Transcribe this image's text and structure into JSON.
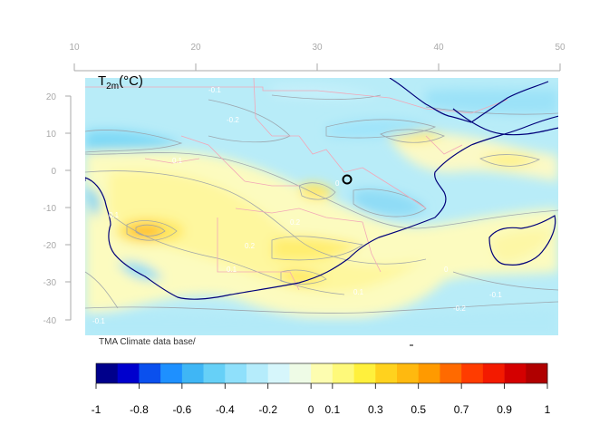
{
  "map": {
    "variable_main": "T",
    "variable_sub": "2m",
    "variable_unit": "(°C)",
    "credit": "TMA Climate data base/",
    "lon_ticks": [
      "10",
      "20",
      "30",
      "40",
      "50"
    ],
    "lat_ticks": [
      "20",
      "10",
      "0",
      "-10",
      "-20",
      "-30",
      "-40"
    ],
    "lon_range": [
      10,
      50
    ],
    "lat_range": [
      -40,
      20
    ],
    "marker": {
      "lon": 32.5,
      "lat": -2.5,
      "shape": "open-circle"
    },
    "contour_labels": [
      "-0.1",
      "0.1",
      "0.2",
      "-0.2",
      "0",
      "0.1",
      "-0.1",
      "0.2",
      "0",
      "0.1",
      "-0.2",
      "-0.1",
      "0.1"
    ]
  },
  "colorbar": {
    "colors": [
      "#00008b",
      "#0000cd",
      "#0a50ee",
      "#1e90ff",
      "#3fb6f5",
      "#66d0f7",
      "#8fe0fb",
      "#b5ecfb",
      "#d6f6fb",
      "#eefbe6",
      "#fdfdb0",
      "#fef97a",
      "#fff03c",
      "#ffd21e",
      "#ffb90f",
      "#ff9a00",
      "#ff6a00",
      "#ff3c00",
      "#f31a00",
      "#d40000",
      "#b00000"
    ],
    "tick_labels": [
      "-1",
      "-0.8",
      "-0.6",
      "-0.4",
      "-0.2",
      "0",
      "0.1",
      "0.3",
      "0.5",
      "0.7",
      "0.9",
      "1"
    ],
    "tick_values": [
      -1,
      -0.8,
      -0.6,
      -0.4,
      -0.2,
      0,
      0.1,
      0.3,
      0.5,
      0.7,
      0.9,
      1
    ]
  },
  "colors": {
    "coast": "#00007a",
    "borders": "#f2a7b8",
    "contour": "#9aa0a8",
    "axis": "#a9a9a9"
  }
}
